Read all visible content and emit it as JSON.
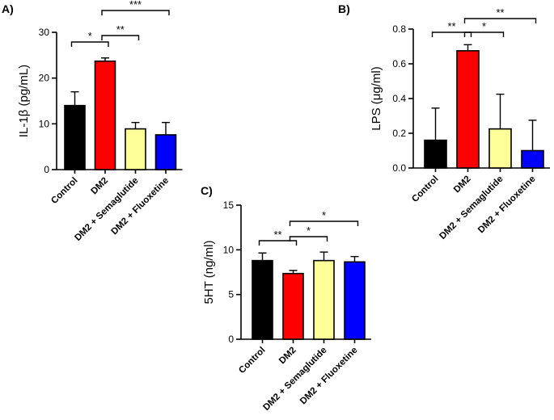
{
  "chart_data": [
    {
      "panel": "A)",
      "type": "bar",
      "categories": [
        "Control",
        "DM2",
        "DM2 + Semaglutide",
        "DM2 + Fluoxetine"
      ],
      "values": [
        14.0,
        23.7,
        8.9,
        7.6
      ],
      "errors": [
        3.0,
        0.7,
        1.4,
        2.7
      ],
      "colors": [
        "#000000",
        "#ff0000",
        "#ffff99",
        "#0000ff"
      ],
      "ylabel": "IL-1β  (pg/mL)",
      "ylim": [
        0,
        30
      ],
      "yticks": [
        0,
        10,
        20,
        30
      ],
      "significance": [
        {
          "from": 0,
          "to": 1,
          "label": "*"
        },
        {
          "from": 1,
          "to": 2,
          "label": "**"
        },
        {
          "from": 1,
          "to": 3,
          "label": "***"
        }
      ]
    },
    {
      "panel": "B)",
      "type": "bar",
      "categories": [
        "Control",
        "DM2",
        "DM2 + Semaglutide",
        "DM2 + Fluoxetine"
      ],
      "values": [
        0.16,
        0.675,
        0.225,
        0.1
      ],
      "errors": [
        0.185,
        0.035,
        0.2,
        0.175
      ],
      "colors": [
        "#000000",
        "#ff0000",
        "#ffff99",
        "#0000ff"
      ],
      "ylabel": "LPS (μg/ml)",
      "ylim": [
        0,
        0.8
      ],
      "yticks": [
        0.0,
        0.2,
        0.4,
        0.6,
        0.8
      ],
      "significance": [
        {
          "from": 0,
          "to": 1,
          "label": "**"
        },
        {
          "from": 1,
          "to": 2,
          "label": "*"
        },
        {
          "from": 1,
          "to": 3,
          "label": "**"
        }
      ]
    },
    {
      "panel": "C)",
      "type": "bar",
      "categories": [
        "Control",
        "DM2",
        "DM2 + Semaglutide",
        "DM2 + Fluoxetine"
      ],
      "values": [
        8.8,
        7.35,
        8.8,
        8.65
      ],
      "errors": [
        0.85,
        0.35,
        0.95,
        0.6
      ],
      "colors": [
        "#000000",
        "#ff0000",
        "#ffff99",
        "#0000ff"
      ],
      "ylabel": "5HT (ng/ml)",
      "ylim": [
        0,
        15
      ],
      "yticks": [
        0,
        5,
        10,
        15
      ],
      "significance": [
        {
          "from": 0,
          "to": 1,
          "label": "**"
        },
        {
          "from": 1,
          "to": 2,
          "label": "*"
        },
        {
          "from": 1,
          "to": 3,
          "label": "*"
        }
      ]
    }
  ]
}
